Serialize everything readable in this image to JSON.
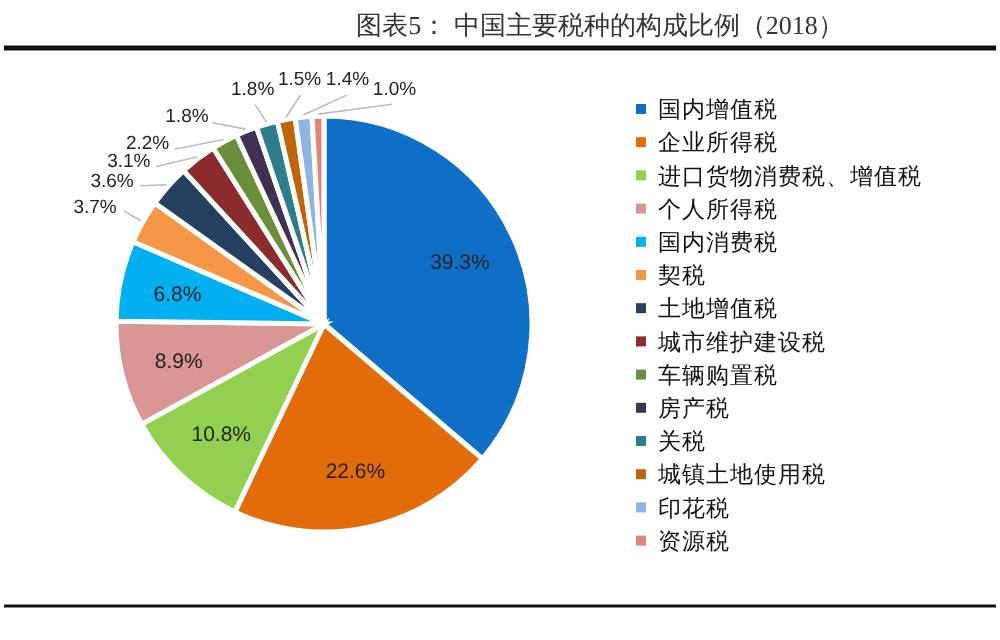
{
  "chart_data": {
    "type": "pie",
    "title": "图表5：  中国主要税种的构成比例（2018）",
    "categories": [
      "国内增值税",
      "企业所得税",
      "进口货物消费税、增值税",
      "个人所得税",
      "国内消费税",
      "契税",
      "土地增值税",
      "城市维护建设税",
      "车辆购置税",
      "房产税",
      "关税",
      "城镇土地使用税",
      "印花税",
      "资源税"
    ],
    "values": [
      39.3,
      22.6,
      10.8,
      8.9,
      6.8,
      3.7,
      3.6,
      3.1,
      2.2,
      1.8,
      1.8,
      1.5,
      1.4,
      1.0
    ],
    "value_labels": [
      "39.3%",
      "22.6%",
      "10.8%",
      "8.9%",
      "6.8%",
      "3.7%",
      "3.6%",
      "3.1%",
      "2.2%",
      "1.8%",
      "1.8%",
      "1.5%",
      "1.4%",
      "1.0%"
    ],
    "colors": [
      "#0f6fc6",
      "#e36c0a",
      "#92d050",
      "#d99694",
      "#00b0f0",
      "#f79646",
      "#254061",
      "#8b2b2b",
      "#6b8e3a",
      "#403152",
      "#2e7d8c",
      "#c0640a",
      "#8eb4e3",
      "#e0877a"
    ],
    "legend": "right"
  }
}
